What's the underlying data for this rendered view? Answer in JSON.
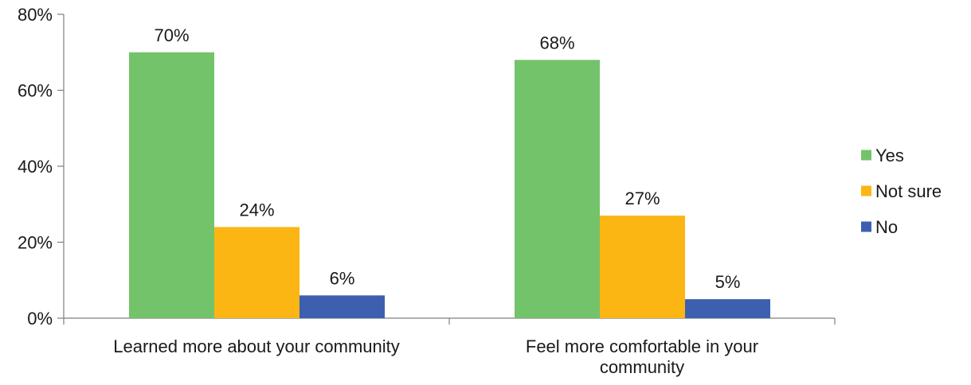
{
  "chart_data": {
    "type": "bar",
    "categories": [
      [
        "Learned more about your community"
      ],
      [
        "Feel more comfortable in your",
        "community"
      ]
    ],
    "series": [
      {
        "name": "Yes",
        "values": [
          70,
          68
        ],
        "labels": [
          "70%",
          "68%"
        ],
        "color": "#73c36a"
      },
      {
        "name": "Not sure",
        "values": [
          24,
          27
        ],
        "labels": [
          "24%",
          "27%"
        ],
        "color": "#fbb614"
      },
      {
        "name": "No",
        "values": [
          6,
          5
        ],
        "labels": [
          "6%",
          "5%"
        ],
        "color": "#3d5fb0"
      }
    ],
    "ylim": [
      0,
      80
    ],
    "yticks": [
      0,
      20,
      40,
      60,
      80
    ],
    "ytick_labels": [
      "0%",
      "20%",
      "40%",
      "60%",
      "80%"
    ],
    "grid": false,
    "legend_position": "right",
    "title": "",
    "xlabel": "",
    "ylabel": ""
  }
}
